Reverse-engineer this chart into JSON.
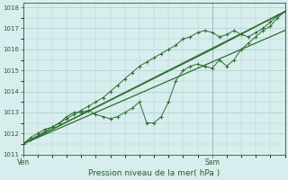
{
  "bg_color": "#d8eeee",
  "grid_color": "#aacccc",
  "line_color": "#2d6e2d",
  "marker_color": "#2d6e2d",
  "xlabel": "Pression niveau de la mer( hPa )",
  "xlabel_color": "#2d5a2d",
  "tick_color": "#2d5a2d",
  "ylim": [
    1011.0,
    1018.2
  ],
  "yticks": [
    1011,
    1012,
    1013,
    1014,
    1015,
    1016,
    1017,
    1018
  ],
  "xlim": [
    0,
    72
  ],
  "x_ven": 0,
  "x_sam": 52,
  "ven_label": "Ven",
  "sam_label": "Sam",
  "series_smooth1": [
    [
      0,
      1011.5
    ],
    [
      72,
      1017.8
    ]
  ],
  "series_smooth2": [
    [
      0,
      1011.5
    ],
    [
      72,
      1016.9
    ]
  ],
  "series_detailed1": [
    [
      0,
      1011.5
    ],
    [
      2,
      1011.7
    ],
    [
      4,
      1011.9
    ],
    [
      6,
      1012.1
    ],
    [
      8,
      1012.3
    ],
    [
      10,
      1012.5
    ],
    [
      12,
      1012.8
    ],
    [
      14,
      1013.0
    ],
    [
      16,
      1013.0
    ],
    [
      18,
      1013.1
    ],
    [
      20,
      1012.9
    ],
    [
      22,
      1012.8
    ],
    [
      24,
      1012.7
    ],
    [
      26,
      1012.8
    ],
    [
      28,
      1013.0
    ],
    [
      30,
      1013.2
    ],
    [
      32,
      1013.5
    ],
    [
      34,
      1012.5
    ],
    [
      36,
      1012.5
    ],
    [
      38,
      1012.8
    ],
    [
      40,
      1013.5
    ],
    [
      42,
      1014.5
    ],
    [
      44,
      1015.0
    ],
    [
      46,
      1015.2
    ],
    [
      48,
      1015.3
    ],
    [
      50,
      1015.2
    ],
    [
      52,
      1015.1
    ],
    [
      54,
      1015.5
    ],
    [
      56,
      1015.2
    ],
    [
      58,
      1015.5
    ],
    [
      60,
      1016.0
    ],
    [
      62,
      1016.3
    ],
    [
      64,
      1016.6
    ],
    [
      66,
      1016.9
    ],
    [
      68,
      1017.1
    ],
    [
      70,
      1017.5
    ],
    [
      72,
      1017.8
    ]
  ],
  "series_detailed2": [
    [
      0,
      1011.5
    ],
    [
      2,
      1011.8
    ],
    [
      4,
      1012.0
    ],
    [
      6,
      1012.2
    ],
    [
      8,
      1012.3
    ],
    [
      10,
      1012.5
    ],
    [
      12,
      1012.7
    ],
    [
      14,
      1012.9
    ],
    [
      16,
      1013.1
    ],
    [
      18,
      1013.3
    ],
    [
      20,
      1013.5
    ],
    [
      22,
      1013.7
    ],
    [
      24,
      1014.0
    ],
    [
      26,
      1014.3
    ],
    [
      28,
      1014.6
    ],
    [
      30,
      1014.9
    ],
    [
      32,
      1015.2
    ],
    [
      34,
      1015.4
    ],
    [
      36,
      1015.6
    ],
    [
      38,
      1015.8
    ],
    [
      40,
      1016.0
    ],
    [
      42,
      1016.2
    ],
    [
      44,
      1016.5
    ],
    [
      46,
      1016.6
    ],
    [
      48,
      1016.8
    ],
    [
      50,
      1016.9
    ],
    [
      52,
      1016.8
    ],
    [
      54,
      1016.6
    ],
    [
      56,
      1016.7
    ],
    [
      58,
      1016.9
    ],
    [
      60,
      1016.7
    ],
    [
      62,
      1016.6
    ],
    [
      64,
      1016.8
    ],
    [
      66,
      1017.0
    ],
    [
      68,
      1017.3
    ],
    [
      70,
      1017.6
    ],
    [
      72,
      1017.8
    ]
  ],
  "series_smooth3": [
    [
      0,
      1011.5
    ],
    [
      52,
      1016.0
    ],
    [
      72,
      1017.8
    ]
  ]
}
